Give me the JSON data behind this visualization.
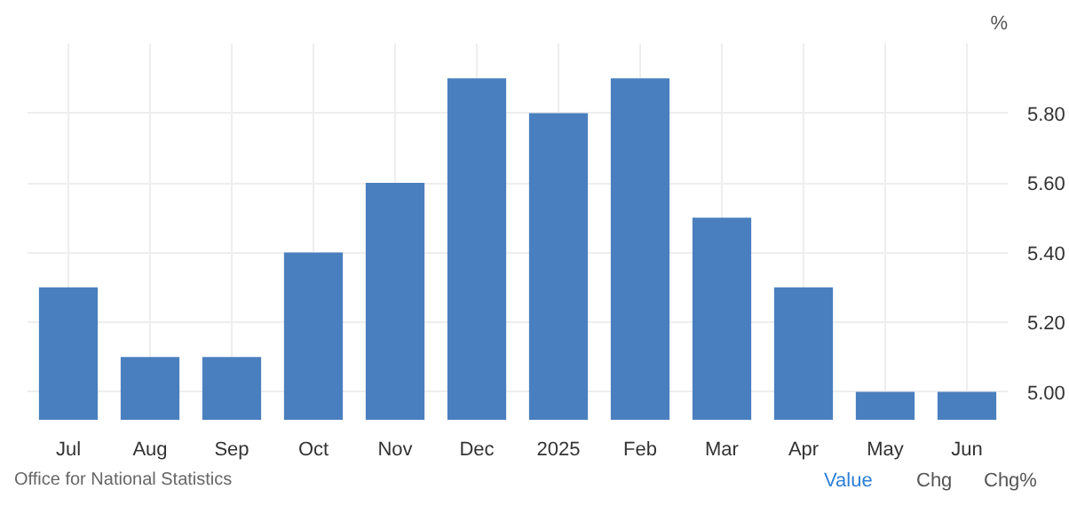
{
  "chart_data": {
    "type": "bar",
    "ylabel": "%",
    "categories": [
      "Jul",
      "Aug",
      "Sep",
      "Oct",
      "Nov",
      "Dec",
      "2025",
      "Feb",
      "Mar",
      "Apr",
      "May",
      "Jun"
    ],
    "values": [
      5.3,
      5.1,
      5.1,
      5.4,
      5.6,
      5.9,
      5.8,
      5.9,
      5.5,
      5.3,
      5.0,
      5.0
    ],
    "color": "#4a7fbf",
    "ylim": [
      4.92,
      6.0
    ],
    "yticks": [
      {
        "value": 5.0,
        "label": "5.00"
      },
      {
        "value": 5.2,
        "label": "5.20"
      },
      {
        "value": 5.4,
        "label": "5.40"
      },
      {
        "value": 5.6,
        "label": "5.60"
      },
      {
        "value": 5.8,
        "label": "5.80"
      }
    ],
    "grid": true,
    "annotations": [
      "Office for National Statistics",
      "Value",
      "Chg",
      "Chg%"
    ]
  }
}
